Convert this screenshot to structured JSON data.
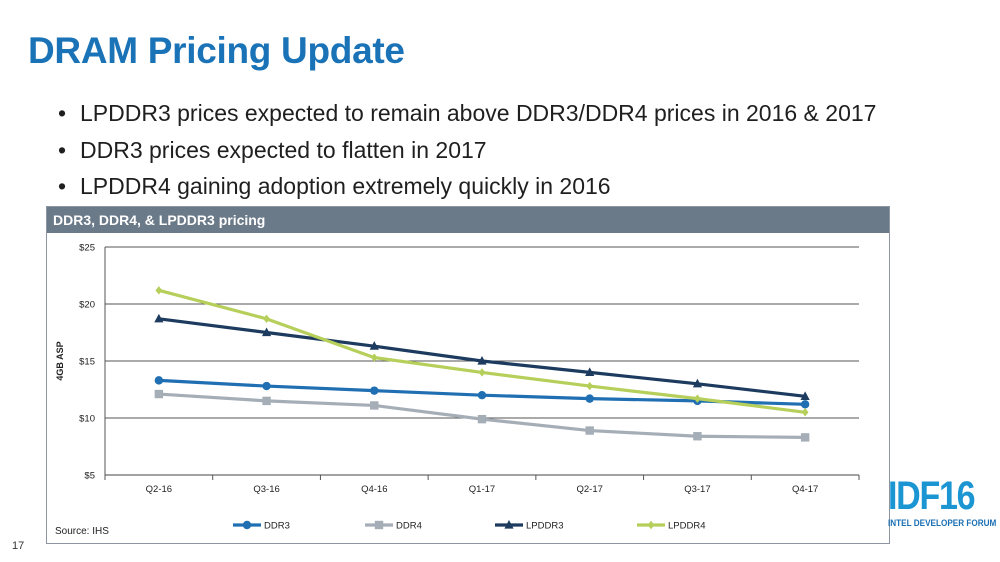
{
  "slide": {
    "title": "DRAM Pricing Update",
    "bullets": [
      "LPDDR3 prices expected to remain above DDR3/DDR4 prices in 2016 & 2017",
      "DDR3 prices expected to flatten in 2017",
      "LPDDR4 gaining adoption extremely quickly in 2016"
    ],
    "page_number": "17",
    "source": "Source: IHS",
    "logo": {
      "main": "IDF16",
      "sub": "INTEL DEVELOPER FORUM"
    },
    "colors": {
      "title": "#1a73b7",
      "panel_header": "#6b7a89",
      "logo": "#1b96d3"
    }
  },
  "chart_data": {
    "type": "line",
    "title": "DDR3, DDR4, & LPDDR3 pricing",
    "xlabel": "",
    "ylabel": "4GB ASP",
    "categories": [
      "Q2-16",
      "Q3-16",
      "Q4-16",
      "Q1-17",
      "Q2-17",
      "Q3-17",
      "Q4-17"
    ],
    "ylim": [
      5,
      25
    ],
    "yticks": [
      5,
      10,
      15,
      20,
      25
    ],
    "ytick_labels": [
      "$5",
      "$10",
      "$15",
      "$20",
      "$25"
    ],
    "grid": true,
    "legend_position": "bottom",
    "series": [
      {
        "name": "DDR3",
        "color": "#1f6fb2",
        "marker": "circle",
        "values": [
          13.3,
          12.8,
          12.4,
          12.0,
          11.7,
          11.5,
          11.2
        ]
      },
      {
        "name": "DDR4",
        "color": "#a5aeb7",
        "marker": "square",
        "values": [
          12.1,
          11.5,
          11.1,
          9.9,
          8.9,
          8.4,
          8.3
        ]
      },
      {
        "name": "LPDDR3",
        "color": "#1d3a5f",
        "marker": "triangle",
        "values": [
          18.7,
          17.5,
          16.3,
          15.0,
          14.0,
          13.0,
          11.9
        ]
      },
      {
        "name": "LPDDR4",
        "color": "#b6cf5a",
        "marker": "diamond",
        "values": [
          21.2,
          18.7,
          15.3,
          14.0,
          12.8,
          11.7,
          10.5
        ]
      }
    ]
  }
}
